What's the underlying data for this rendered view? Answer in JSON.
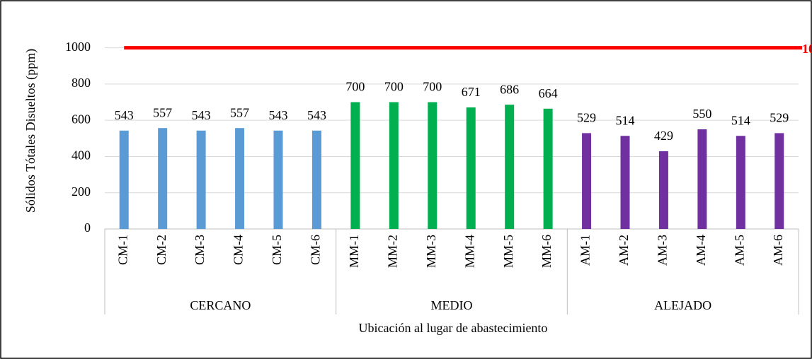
{
  "chart_data": {
    "type": "bar",
    "y_axis_label": "Sólidos Tótales Disueltos  (ppm)",
    "x_axis_label": "Ubicación al lugar de abastecimiento",
    "ylim": [
      0,
      1100
    ],
    "yticks": [
      0,
      200,
      400,
      600,
      800,
      1000
    ],
    "grid": true,
    "groups": [
      {
        "name": "CERCANO",
        "color": "#5b9bd5",
        "categories": [
          "CM-1",
          "CM-2",
          "CM-3",
          "CM-4",
          "CM-5",
          "CM-6"
        ],
        "values": [
          543,
          557,
          543,
          557,
          543,
          543
        ]
      },
      {
        "name": "MEDIO",
        "color": "#00b050",
        "categories": [
          "MM-1",
          "MM-2",
          "MM-3",
          "MM-4",
          "MM-5",
          "MM-6"
        ],
        "values": [
          700,
          700,
          700,
          671,
          686,
          664
        ]
      },
      {
        "name": "ALEJADO",
        "color": "#7030a0",
        "categories": [
          "AM-1",
          "AM-2",
          "AM-3",
          "AM-4",
          "AM-5",
          "AM-6"
        ],
        "values": [
          529,
          514,
          429,
          550,
          514,
          529
        ]
      }
    ],
    "reference_line": {
      "value": 1000,
      "color": "#ff0000"
    }
  }
}
